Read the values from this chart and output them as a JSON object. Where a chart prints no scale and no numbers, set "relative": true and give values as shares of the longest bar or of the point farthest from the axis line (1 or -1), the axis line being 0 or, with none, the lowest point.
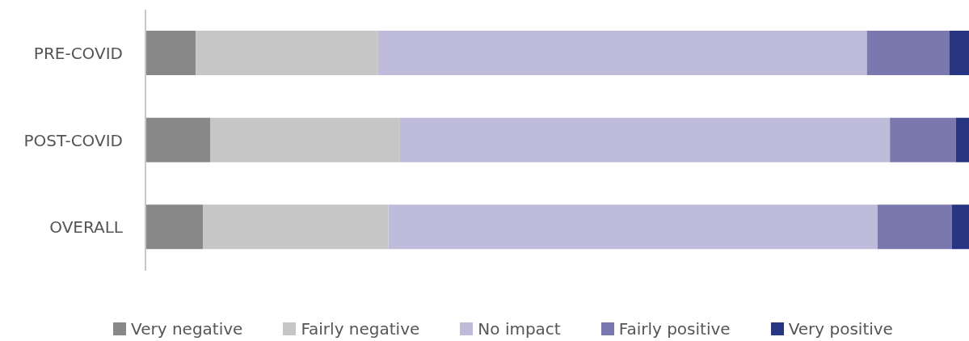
{
  "chart_data": {
    "type": "bar",
    "orientation": "horizontal",
    "stacked": true,
    "relative": true,
    "categories": [
      "PRE-COVID",
      "POST-COVID",
      "OVERALL"
    ],
    "series": [
      {
        "name": "Very negative",
        "color": "#888888",
        "values": [
          0.061,
          0.079,
          0.07
        ]
      },
      {
        "name": "Fairly negative",
        "color": "#c6c6c6",
        "values": [
          0.221,
          0.23,
          0.225
        ]
      },
      {
        "name": "No impact",
        "color": "#bfbbda",
        "values": [
          0.594,
          0.595,
          0.594
        ]
      },
      {
        "name": "Fairly positive",
        "color": "#7b78b0",
        "values": [
          0.1,
          0.08,
          0.09
        ]
      },
      {
        "name": "Very positive",
        "color": "#283583",
        "values": [
          0.024,
          0.016,
          0.021
        ]
      }
    ],
    "legend": "bottom"
  }
}
